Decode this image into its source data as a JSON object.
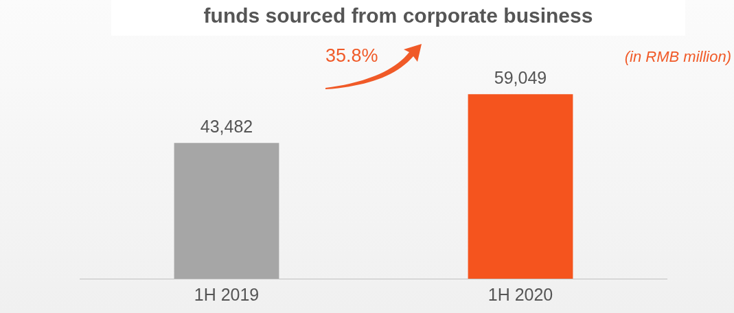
{
  "chart_data": {
    "type": "bar",
    "title": "funds sourced from corporate business",
    "categories": [
      "1H 2019",
      "1H 2020"
    ],
    "values": [
      43482,
      59049
    ],
    "colors": [
      "#a6a6a6",
      "#f5541e"
    ],
    "value_labels": [
      "43,482",
      "59,049"
    ],
    "grid": false,
    "legend": false,
    "annotations": [
      "35.8%",
      "(in RMB million)"
    ]
  }
}
